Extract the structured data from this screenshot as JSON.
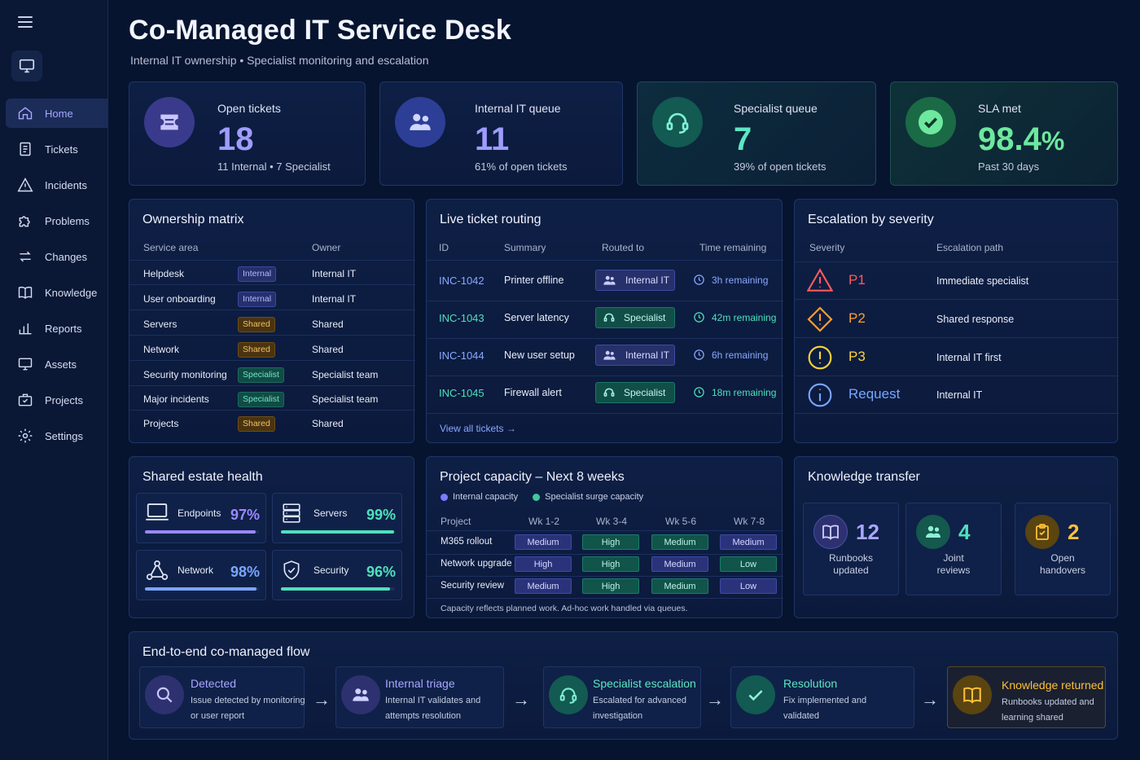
{
  "header": {
    "title": "Co-Managed IT Service Desk",
    "subtitle": "Internal IT ownership • Specialist monitoring and escalation"
  },
  "sidebar": {
    "items": [
      {
        "label": "Home",
        "icon": "home-icon",
        "active": true
      },
      {
        "label": "Tickets",
        "icon": "ticket-icon"
      },
      {
        "label": "Incidents",
        "icon": "warning-icon"
      },
      {
        "label": "Problems",
        "icon": "puzzle-icon"
      },
      {
        "label": "Changes",
        "icon": "swap-icon"
      },
      {
        "label": "Knowledge",
        "icon": "book-icon"
      },
      {
        "label": "Reports",
        "icon": "bar-chart-icon"
      },
      {
        "label": "Assets",
        "icon": "monitor-icon"
      },
      {
        "label": "Projects",
        "icon": "briefcase-icon"
      },
      {
        "label": "Settings",
        "icon": "gear-icon"
      }
    ]
  },
  "kpis": [
    {
      "label": "Open tickets",
      "value": "18",
      "sub": "11 Internal • 7 Specialist",
      "color": "#8e8cff"
    },
    {
      "label": "Internal IT queue",
      "value": "11",
      "sub": "61% of open tickets",
      "color": "#8e8cff"
    },
    {
      "label": "Specialist queue",
      "value": "7",
      "sub": "39% of open tickets",
      "color": "#56e0c0"
    },
    {
      "label": "SLA met",
      "value": "98.4",
      "unit": "%",
      "sub": "Past 30 days",
      "color": "#66e59a"
    }
  ],
  "ownership": {
    "title": "Ownership matrix",
    "headers": [
      "Service area",
      "Owner"
    ],
    "rows": [
      {
        "area": "Helpdesk",
        "tag": "Internal",
        "type": "internal",
        "owner": "Internal IT"
      },
      {
        "area": "User onboarding",
        "tag": "Internal",
        "type": "internal",
        "owner": "Internal IT"
      },
      {
        "area": "Servers",
        "tag": "Shared",
        "type": "shared",
        "owner": "Shared"
      },
      {
        "area": "Network",
        "tag": "Shared",
        "type": "shared",
        "owner": "Shared"
      },
      {
        "area": "Security monitoring",
        "tag": "Specialist",
        "type": "specialist",
        "owner": "Specialist team"
      },
      {
        "area": "Major incidents",
        "tag": "Specialist",
        "type": "specialist",
        "owner": "Specialist team"
      },
      {
        "area": "Projects",
        "tag": "Shared",
        "type": "shared",
        "owner": "Shared"
      }
    ]
  },
  "routing": {
    "title": "Live ticket routing",
    "headers": [
      "ID",
      "Summary",
      "Routed to",
      "Time remaining"
    ],
    "rows": [
      {
        "id": "INC-1042",
        "summary": "Printer offline",
        "route": "Internal IT",
        "type": "internal",
        "time": "3h remaining"
      },
      {
        "id": "INC-1043",
        "summary": "Server latency",
        "route": "Specialist",
        "type": "specialist",
        "time": "42m remaining"
      },
      {
        "id": "INC-1044",
        "summary": "New user setup",
        "route": "Internal IT",
        "type": "internal",
        "time": "6h remaining"
      },
      {
        "id": "INC-1045",
        "summary": "Firewall alert",
        "route": "Specialist",
        "type": "specialist",
        "time": "18m remaining"
      }
    ],
    "view_all": "View all tickets"
  },
  "escalation": {
    "title": "Escalation by severity",
    "headers": [
      "Severity",
      "Escalation path"
    ],
    "rows": [
      {
        "sev": "P1",
        "path": "Immediate specialist",
        "color": "#ff5a5a",
        "icon": "triangle-warning-icon"
      },
      {
        "sev": "P2",
        "path": "Shared response",
        "color": "#ff9f2e",
        "icon": "diamond-warning-icon"
      },
      {
        "sev": "P3",
        "path": "Internal IT first",
        "color": "#ffd43a",
        "icon": "circle-warning-icon"
      },
      {
        "sev": "Request",
        "path": "Internal IT",
        "color": "#7aa6ff",
        "icon": "info-icon"
      }
    ]
  },
  "health": {
    "title": "Shared estate health",
    "items": [
      {
        "label": "Endpoints",
        "value": "97%",
        "pct": 97,
        "color": "#9b87ff",
        "icon": "laptop-icon"
      },
      {
        "label": "Servers",
        "value": "99%",
        "pct": 99,
        "color": "#4fe0bc",
        "icon": "server-icon"
      },
      {
        "label": "Network",
        "value": "98%",
        "pct": 98,
        "color": "#7aa6ff",
        "icon": "network-icon"
      },
      {
        "label": "Security",
        "value": "96%",
        "pct": 96,
        "color": "#4fe0bc",
        "icon": "shield-icon"
      }
    ]
  },
  "capacity": {
    "title": "Project capacity – Next 8 weeks",
    "legend": [
      {
        "label": "Internal capacity",
        "color": "#7b7bff"
      },
      {
        "label": "Specialist surge capacity",
        "color": "#3ec89a"
      }
    ],
    "headers": [
      "Project",
      "Wk 1-2",
      "Wk 3-4",
      "Wk 5-6",
      "Wk 7-8"
    ],
    "rows": [
      {
        "project": "M365 rollout",
        "cells": [
          {
            "v": "Medium",
            "t": "in"
          },
          {
            "v": "High",
            "t": "sp"
          },
          {
            "v": "Medium",
            "t": "sp"
          },
          {
            "v": "Medium",
            "t": "in"
          }
        ]
      },
      {
        "project": "Network upgrade",
        "cells": [
          {
            "v": "High",
            "t": "in"
          },
          {
            "v": "High",
            "t": "sp"
          },
          {
            "v": "Medium",
            "t": "in"
          },
          {
            "v": "Low",
            "t": "sp"
          }
        ]
      },
      {
        "project": "Security review",
        "cells": [
          {
            "v": "Medium",
            "t": "in"
          },
          {
            "v": "High",
            "t": "sp"
          },
          {
            "v": "Medium",
            "t": "sp"
          },
          {
            "v": "Low",
            "t": "in"
          }
        ]
      }
    ],
    "note": "Capacity reflects planned work. Ad-hoc work handled via queues."
  },
  "knowledge": {
    "title": "Knowledge transfer",
    "items": [
      {
        "num": "12",
        "label1": "Runbooks",
        "label2": "updated",
        "color": "#9b9bff",
        "icon": "book-icon"
      },
      {
        "num": "4",
        "label1": "Joint",
        "label2": "reviews",
        "color": "#4fe0bc",
        "icon": "users-icon"
      },
      {
        "num": "2",
        "label1": "Open",
        "label2": "handovers",
        "color": "#ffc038",
        "icon": "clipboard-icon"
      }
    ]
  },
  "flow": {
    "title": "End-to-end co-managed flow",
    "steps": [
      {
        "title": "Detected",
        "d1": "Issue detected by monitoring",
        "d2": "or user report",
        "color": "#a9a6ff"
      },
      {
        "title": "Internal triage",
        "d1": "Internal IT validates and",
        "d2": "attempts resolution",
        "color": "#a9a6ff"
      },
      {
        "title": "Specialist escalation",
        "d1": "Escalated for advanced",
        "d2": "investigation",
        "color": "#5ee6c4"
      },
      {
        "title": "Resolution",
        "d1": "Fix implemented and",
        "d2": "validated",
        "color": "#5ee6c4"
      },
      {
        "title": "Knowledge returned",
        "d1": "Runbooks updated and",
        "d2": "learning shared",
        "color": "#ffc038"
      }
    ]
  }
}
